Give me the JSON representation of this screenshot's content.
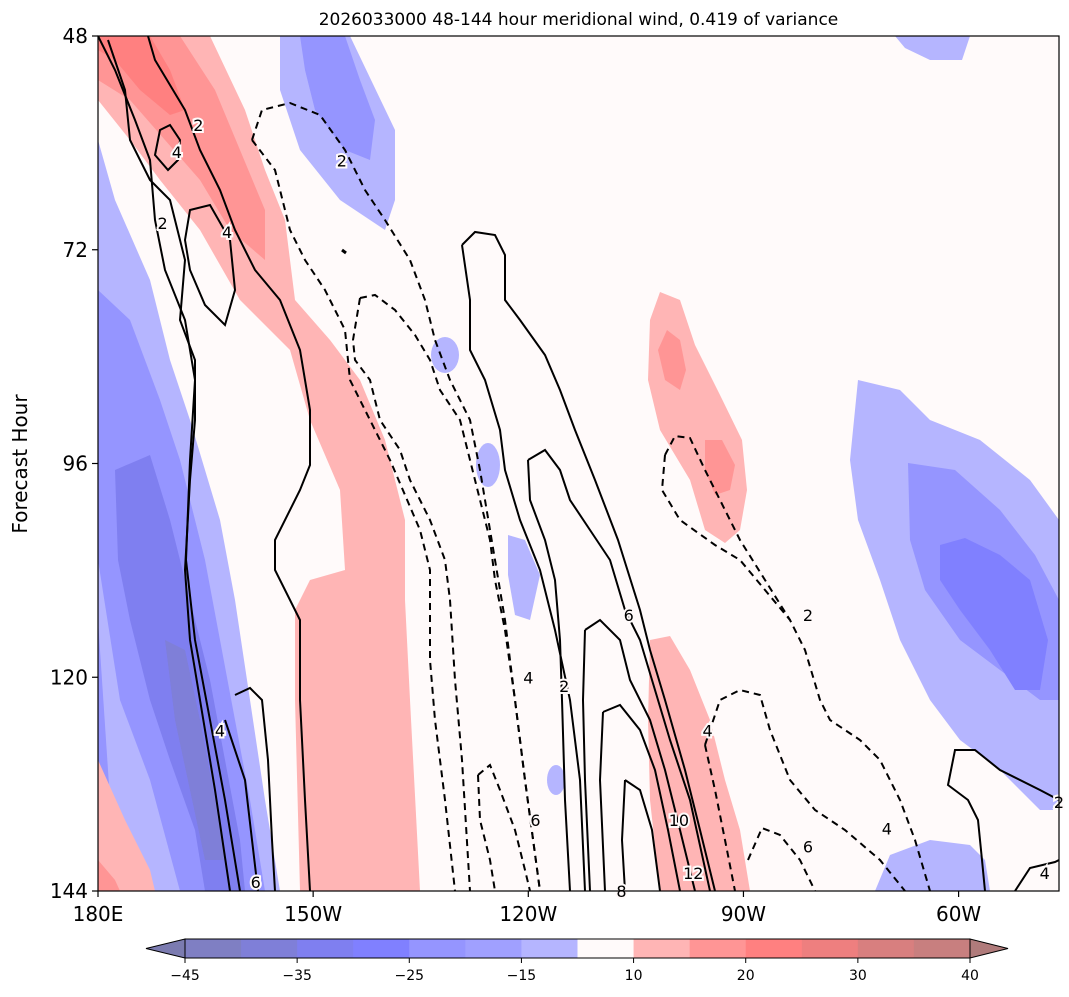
{
  "chart_data": {
    "type": "heatmap",
    "title": "2026033000 48-144 hour meridional wind, 0.419 of variance",
    "xlabel": "",
    "ylabel": "Forecast Hour",
    "x_ticks": [
      "180E",
      "150W",
      "120W",
      "90W",
      "60W"
    ],
    "y_ticks": [
      "48",
      "72",
      "96",
      "120",
      "144"
    ],
    "xlim_lon": [
      -180,
      -46
    ],
    "ylim_hours": [
      48,
      144
    ],
    "y_inverted": true,
    "colorbar": {
      "ticks": [
        "−45",
        "−35",
        "−25",
        "−15",
        "10",
        "20",
        "30",
        "40"
      ],
      "extend": "both",
      "levels": [
        -50,
        -45,
        -40,
        -35,
        -30,
        -25,
        -20,
        -15,
        -10,
        10,
        15,
        20,
        25,
        30,
        35,
        40,
        45
      ],
      "colors": [
        "#7b7bb0",
        "#7f7fc3",
        "#7f7fd8",
        "#7f7ff0",
        "#8080ff",
        "#9595ff",
        "#a0a0ff",
        "#b5b5ff",
        "#fffafa",
        "#ffb5b5",
        "#ff9595",
        "#ff8080",
        "#ee7f7f",
        "#d87f7f",
        "#c87f7f",
        "#b07b7b"
      ]
    },
    "contour_labels": [
      {
        "text": "2",
        "lon": -166,
        "hour": 58
      },
      {
        "text": "4",
        "lon": -169,
        "hour": 61
      },
      {
        "text": "2",
        "lon": -171,
        "hour": 69
      },
      {
        "text": "4",
        "lon": -162,
        "hour": 70
      },
      {
        "text": "2",
        "lon": -146,
        "hour": 62
      },
      {
        "text": "6",
        "lon": -106,
        "hour": 113
      },
      {
        "text": "2",
        "lon": -115,
        "hour": 121
      },
      {
        "text": "4",
        "lon": -120,
        "hour": 120
      },
      {
        "text": "4",
        "lon": -163,
        "hour": 126
      },
      {
        "text": "6",
        "lon": -158,
        "hour": 143
      },
      {
        "text": "6",
        "lon": -119,
        "hour": 136
      },
      {
        "text": "4",
        "lon": -95,
        "hour": 126
      },
      {
        "text": "10",
        "lon": -99,
        "hour": 136
      },
      {
        "text": "12",
        "lon": -97,
        "hour": 142
      },
      {
        "text": "8",
        "lon": -107,
        "hour": 144
      },
      {
        "text": "2",
        "lon": -81,
        "hour": 113
      },
      {
        "text": "6",
        "lon": -81,
        "hour": 139
      },
      {
        "text": "4",
        "lon": -70,
        "hour": 137
      },
      {
        "text": "2",
        "lon": -46,
        "hour": 134
      },
      {
        "text": "4",
        "lon": -48,
        "hour": 142
      }
    ]
  }
}
